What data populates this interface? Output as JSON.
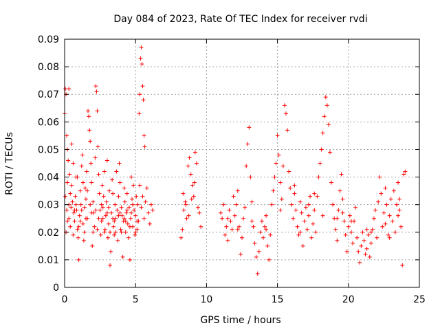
{
  "chart_data": {
    "type": "scatter",
    "title": "Day 084 of 2023, Rate Of TEC Index for receiver rvdi",
    "xlabel": "GPS time / hours",
    "ylabel": "ROTI / TECUs",
    "xlim": [
      0,
      25
    ],
    "ylim": [
      0,
      0.09
    ],
    "x_ticks": [
      "0",
      "5",
      "10",
      "15",
      "20",
      "25"
    ],
    "y_ticks": [
      "0",
      "0.01",
      "0.02",
      "0.03",
      "0.04",
      "0.05",
      "0.06",
      "0.07",
      "0.08",
      "0.09"
    ],
    "x_tick_values": [
      0,
      5,
      10,
      15,
      20,
      25
    ],
    "y_tick_values": [
      0,
      0.01,
      0.02,
      0.03,
      0.04,
      0.05,
      0.06,
      0.07,
      0.08,
      0.09
    ],
    "grid": true,
    "marker": "plus",
    "colors": {
      "points": "#ff0000",
      "grid": "#a0a0a0",
      "axes": "#000000"
    },
    "points": [
      [
        0.0,
        0.063
      ],
      [
        0.05,
        0.072
      ],
      [
        0.1,
        0.07
      ],
      [
        0.15,
        0.055
      ],
      [
        0.2,
        0.05
      ],
      [
        0.25,
        0.046
      ],
      [
        0.3,
        0.072
      ],
      [
        0.35,
        0.041
      ],
      [
        0.4,
        0.034
      ],
      [
        0.45,
        0.029
      ],
      [
        0.05,
        0.033
      ],
      [
        0.1,
        0.02
      ],
      [
        0.15,
        0.028
      ],
      [
        0.2,
        0.038
      ],
      [
        0.3,
        0.025
      ],
      [
        0.4,
        0.022
      ],
      [
        0.5,
        0.037
      ],
      [
        0.55,
        0.031
      ],
      [
        0.6,
        0.019
      ],
      [
        0.65,
        0.027
      ],
      [
        0.7,
        0.024
      ],
      [
        0.75,
        0.033
      ],
      [
        0.8,
        0.04
      ],
      [
        0.85,
        0.028
      ],
      [
        0.9,
        0.021
      ],
      [
        0.95,
        0.018
      ],
      [
        1.0,
        0.01
      ],
      [
        1.05,
        0.026
      ],
      [
        1.1,
        0.035
      ],
      [
        1.15,
        0.03
      ],
      [
        1.2,
        0.044
      ],
      [
        1.25,
        0.048
      ],
      [
        1.3,
        0.023
      ],
      [
        1.35,
        0.017
      ],
      [
        1.4,
        0.029
      ],
      [
        1.45,
        0.036
      ],
      [
        1.5,
        0.032
      ],
      [
        1.55,
        0.042
      ],
      [
        1.6,
        0.025
      ],
      [
        1.65,
        0.064
      ],
      [
        1.7,
        0.062
      ],
      [
        1.75,
        0.057
      ],
      [
        1.8,
        0.053
      ],
      [
        1.85,
        0.045
      ],
      [
        1.9,
        0.038
      ],
      [
        1.95,
        0.015
      ],
      [
        2.0,
        0.031
      ],
      [
        2.05,
        0.027
      ],
      [
        2.1,
        0.022
      ],
      [
        2.15,
        0.047
      ],
      [
        2.2,
        0.073
      ],
      [
        2.25,
        0.071
      ],
      [
        2.3,
        0.064
      ],
      [
        2.35,
        0.051
      ],
      [
        2.4,
        0.041
      ],
      [
        2.45,
        0.034
      ],
      [
        2.5,
        0.028
      ],
      [
        2.55,
        0.019
      ],
      [
        2.6,
        0.024
      ],
      [
        2.65,
        0.037
      ],
      [
        2.7,
        0.029
      ],
      [
        2.75,
        0.033
      ],
      [
        2.8,
        0.042
      ],
      [
        2.85,
        0.021
      ],
      [
        2.9,
        0.026
      ],
      [
        2.95,
        0.031
      ],
      [
        3.0,
        0.046
      ],
      [
        3.05,
        0.018
      ],
      [
        3.1,
        0.023
      ],
      [
        3.15,
        0.035
      ],
      [
        3.2,
        0.008
      ],
      [
        3.25,
        0.013
      ],
      [
        3.3,
        0.027
      ],
      [
        3.35,
        0.039
      ],
      [
        3.4,
        0.034
      ],
      [
        3.45,
        0.022
      ],
      [
        3.5,
        0.019
      ],
      [
        3.55,
        0.03
      ],
      [
        3.6,
        0.025
      ],
      [
        3.65,
        0.042
      ],
      [
        3.7,
        0.028
      ],
      [
        3.75,
        0.017
      ],
      [
        3.8,
        0.033
      ],
      [
        3.85,
        0.045
      ],
      [
        3.9,
        0.038
      ],
      [
        3.95,
        0.021
      ],
      [
        4.0,
        0.029
      ],
      [
        4.05,
        0.026
      ],
      [
        4.1,
        0.011
      ],
      [
        4.15,
        0.024
      ],
      [
        4.2,
        0.036
      ],
      [
        4.25,
        0.031
      ],
      [
        4.3,
        0.02
      ],
      [
        4.35,
        0.027
      ],
      [
        4.4,
        0.034
      ],
      [
        4.45,
        0.023
      ],
      [
        4.5,
        0.018
      ],
      [
        4.55,
        0.029
      ],
      [
        4.6,
        0.01
      ],
      [
        4.65,
        0.025
      ],
      [
        4.7,
        0.04
      ],
      [
        4.75,
        0.032
      ],
      [
        4.8,
        0.022
      ],
      [
        4.85,
        0.037
      ],
      [
        4.9,
        0.028
      ],
      [
        4.95,
        0.019
      ],
      [
        5.0,
        0.026
      ],
      [
        5.05,
        0.033
      ],
      [
        5.1,
        0.021
      ],
      [
        5.15,
        0.03
      ],
      [
        5.2,
        0.024
      ],
      [
        5.25,
        0.063
      ],
      [
        5.3,
        0.07
      ],
      [
        5.35,
        0.083
      ],
      [
        5.4,
        0.087
      ],
      [
        5.45,
        0.081
      ],
      [
        5.5,
        0.073
      ],
      [
        5.55,
        0.068
      ],
      [
        5.6,
        0.055
      ],
      [
        5.65,
        0.051
      ],
      [
        5.3,
        0.037
      ],
      [
        5.4,
        0.029
      ],
      [
        5.5,
        0.033
      ],
      [
        5.6,
        0.025
      ],
      [
        5.7,
        0.031
      ],
      [
        5.8,
        0.036
      ],
      [
        5.9,
        0.027
      ],
      [
        6.0,
        0.023
      ],
      [
        6.1,
        0.03
      ],
      [
        6.2,
        0.028
      ],
      [
        0.3,
        0.03
      ],
      [
        0.6,
        0.045
      ],
      [
        0.8,
        0.03
      ],
      [
        1.0,
        0.022
      ],
      [
        1.2,
        0.028
      ],
      [
        1.4,
        0.02
      ],
      [
        1.6,
        0.035
      ],
      [
        1.8,
        0.03
      ],
      [
        2.0,
        0.02
      ],
      [
        2.2,
        0.028
      ],
      [
        2.4,
        0.025
      ],
      [
        2.6,
        0.03
      ],
      [
        2.8,
        0.02
      ],
      [
        3.0,
        0.027
      ],
      [
        3.2,
        0.02
      ],
      [
        3.4,
        0.025
      ],
      [
        3.6,
        0.02
      ],
      [
        3.8,
        0.026
      ],
      [
        4.0,
        0.02
      ],
      [
        4.2,
        0.025
      ],
      [
        4.4,
        0.028
      ],
      [
        4.6,
        0.022
      ],
      [
        4.8,
        0.03
      ],
      [
        5.0,
        0.02
      ],
      [
        0.2,
        0.024
      ],
      [
        0.7,
        0.028
      ],
      [
        1.1,
        0.024
      ],
      [
        1.5,
        0.025
      ],
      [
        1.9,
        0.027
      ],
      [
        2.3,
        0.021
      ],
      [
        2.7,
        0.025
      ],
      [
        3.1,
        0.029
      ],
      [
        3.5,
        0.024
      ],
      [
        3.9,
        0.027
      ],
      [
        4.3,
        0.024
      ],
      [
        4.7,
        0.027
      ],
      [
        5.1,
        0.024
      ],
      [
        0.5,
        0.052
      ],
      [
        0.9,
        0.04
      ],
      [
        1.3,
        0.038
      ],
      [
        8.2,
        0.018
      ],
      [
        8.3,
        0.021
      ],
      [
        8.4,
        0.028
      ],
      [
        8.5,
        0.031
      ],
      [
        8.6,
        0.025
      ],
      [
        8.7,
        0.044
      ],
      [
        8.8,
        0.047
      ],
      [
        8.9,
        0.041
      ],
      [
        9.0,
        0.037
      ],
      [
        9.1,
        0.033
      ],
      [
        9.2,
        0.049
      ],
      [
        9.3,
        0.045
      ],
      [
        9.4,
        0.029
      ],
      [
        9.5,
        0.027
      ],
      [
        9.6,
        0.022
      ],
      [
        8.35,
        0.034
      ],
      [
        8.55,
        0.03
      ],
      [
        8.75,
        0.026
      ],
      [
        8.95,
        0.032
      ],
      [
        9.15,
        0.038
      ],
      [
        11.0,
        0.027
      ],
      [
        11.1,
        0.025
      ],
      [
        11.2,
        0.03
      ],
      [
        11.3,
        0.019
      ],
      [
        11.4,
        0.022
      ],
      [
        11.5,
        0.017
      ],
      [
        11.6,
        0.028
      ],
      [
        11.7,
        0.024
      ],
      [
        11.8,
        0.021
      ],
      [
        11.9,
        0.033
      ],
      [
        12.0,
        0.026
      ],
      [
        12.1,
        0.03
      ],
      [
        12.2,
        0.035
      ],
      [
        12.3,
        0.022
      ],
      [
        12.4,
        0.012
      ],
      [
        12.5,
        0.018
      ],
      [
        12.6,
        0.025
      ],
      [
        12.7,
        0.029
      ],
      [
        12.8,
        0.044
      ],
      [
        12.9,
        0.052
      ],
      [
        13.0,
        0.058
      ],
      [
        13.1,
        0.04
      ],
      [
        13.2,
        0.031
      ],
      [
        13.3,
        0.022
      ],
      [
        13.4,
        0.016
      ],
      [
        13.5,
        0.011
      ],
      [
        13.6,
        0.005
      ],
      [
        13.7,
        0.013
      ],
      [
        13.8,
        0.02
      ],
      [
        13.9,
        0.024
      ],
      [
        14.0,
        0.018
      ],
      [
        14.1,
        0.022
      ],
      [
        14.2,
        0.026
      ],
      [
        14.3,
        0.015
      ],
      [
        14.4,
        0.01
      ],
      [
        14.5,
        0.019
      ],
      [
        14.6,
        0.03
      ],
      [
        14.7,
        0.035
      ],
      [
        14.8,
        0.04
      ],
      [
        14.9,
        0.045
      ],
      [
        15.0,
        0.055
      ],
      [
        15.1,
        0.048
      ],
      [
        15.2,
        0.038
      ],
      [
        15.3,
        0.032
      ],
      [
        15.4,
        0.044
      ],
      [
        15.5,
        0.066
      ],
      [
        15.6,
        0.063
      ],
      [
        15.7,
        0.057
      ],
      [
        15.8,
        0.042
      ],
      [
        15.9,
        0.036
      ],
      [
        16.0,
        0.03
      ],
      [
        16.1,
        0.025
      ],
      [
        16.2,
        0.034
      ],
      [
        16.3,
        0.028
      ],
      [
        16.4,
        0.022
      ],
      [
        16.5,
        0.019
      ],
      [
        16.6,
        0.031
      ],
      [
        16.7,
        0.027
      ],
      [
        16.8,
        0.015
      ],
      [
        16.9,
        0.024
      ],
      [
        17.0,
        0.029
      ],
      [
        17.1,
        0.021
      ],
      [
        17.2,
        0.026
      ],
      [
        17.3,
        0.033
      ],
      [
        17.4,
        0.018
      ],
      [
        17.5,
        0.023
      ],
      [
        17.6,
        0.028
      ],
      [
        17.7,
        0.02
      ],
      [
        17.8,
        0.033
      ],
      [
        17.9,
        0.04
      ],
      [
        18.0,
        0.045
      ],
      [
        18.1,
        0.05
      ],
      [
        18.2,
        0.056
      ],
      [
        18.3,
        0.062
      ],
      [
        18.4,
        0.069
      ],
      [
        18.5,
        0.066
      ],
      [
        18.6,
        0.059
      ],
      [
        18.7,
        0.049
      ],
      [
        18.8,
        0.038
      ],
      [
        18.9,
        0.03
      ],
      [
        19.0,
        0.025
      ],
      [
        19.1,
        0.021
      ],
      [
        19.2,
        0.017
      ],
      [
        19.3,
        0.028
      ],
      [
        19.4,
        0.035
      ],
      [
        19.5,
        0.041
      ],
      [
        19.6,
        0.032
      ],
      [
        19.7,
        0.024
      ],
      [
        19.8,
        0.019
      ],
      [
        19.9,
        0.013
      ],
      [
        20.0,
        0.022
      ],
      [
        20.1,
        0.026
      ],
      [
        20.2,
        0.02
      ],
      [
        20.3,
        0.016
      ],
      [
        20.4,
        0.024
      ],
      [
        20.5,
        0.029
      ],
      [
        20.6,
        0.018
      ],
      [
        20.7,
        0.013
      ],
      [
        20.8,
        0.009
      ],
      [
        20.9,
        0.015
      ],
      [
        21.0,
        0.02
      ],
      [
        21.1,
        0.017
      ],
      [
        21.2,
        0.012
      ],
      [
        21.3,
        0.014
      ],
      [
        21.4,
        0.019
      ],
      [
        21.5,
        0.011
      ],
      [
        21.6,
        0.016
      ],
      [
        21.7,
        0.021
      ],
      [
        21.8,
        0.025
      ],
      [
        21.9,
        0.028
      ],
      [
        22.0,
        0.018
      ],
      [
        22.1,
        0.031
      ],
      [
        22.2,
        0.04
      ],
      [
        22.3,
        0.034
      ],
      [
        22.4,
        0.022
      ],
      [
        22.5,
        0.027
      ],
      [
        22.6,
        0.023
      ],
      [
        22.7,
        0.03
      ],
      [
        22.8,
        0.019
      ],
      [
        22.9,
        0.026
      ],
      [
        23.0,
        0.032
      ],
      [
        23.1,
        0.024
      ],
      [
        23.2,
        0.035
      ],
      [
        23.3,
        0.02
      ],
      [
        23.4,
        0.03
      ],
      [
        23.5,
        0.038
      ],
      [
        23.6,
        0.028
      ],
      [
        23.7,
        0.022
      ],
      [
        23.8,
        0.008
      ],
      [
        23.9,
        0.041
      ],
      [
        24.0,
        0.042
      ],
      [
        23.5,
        0.026
      ],
      [
        23.6,
        0.032
      ],
      [
        22.6,
        0.036
      ],
      [
        21.3,
        0.021
      ],
      [
        20.2,
        0.024
      ],
      [
        19.2,
        0.025
      ],
      [
        18.2,
        0.026
      ],
      [
        17.2,
        0.03
      ],
      [
        16.2,
        0.037
      ],
      [
        15.2,
        0.028
      ],
      [
        14.2,
        0.021
      ],
      [
        13.2,
        0.024
      ],
      [
        12.2,
        0.021
      ],
      [
        11.5,
        0.025
      ],
      [
        16.6,
        0.02
      ],
      [
        17.6,
        0.034
      ],
      [
        19.6,
        0.027
      ],
      [
        21.6,
        0.02
      ],
      [
        22.9,
        0.018
      ]
    ]
  }
}
